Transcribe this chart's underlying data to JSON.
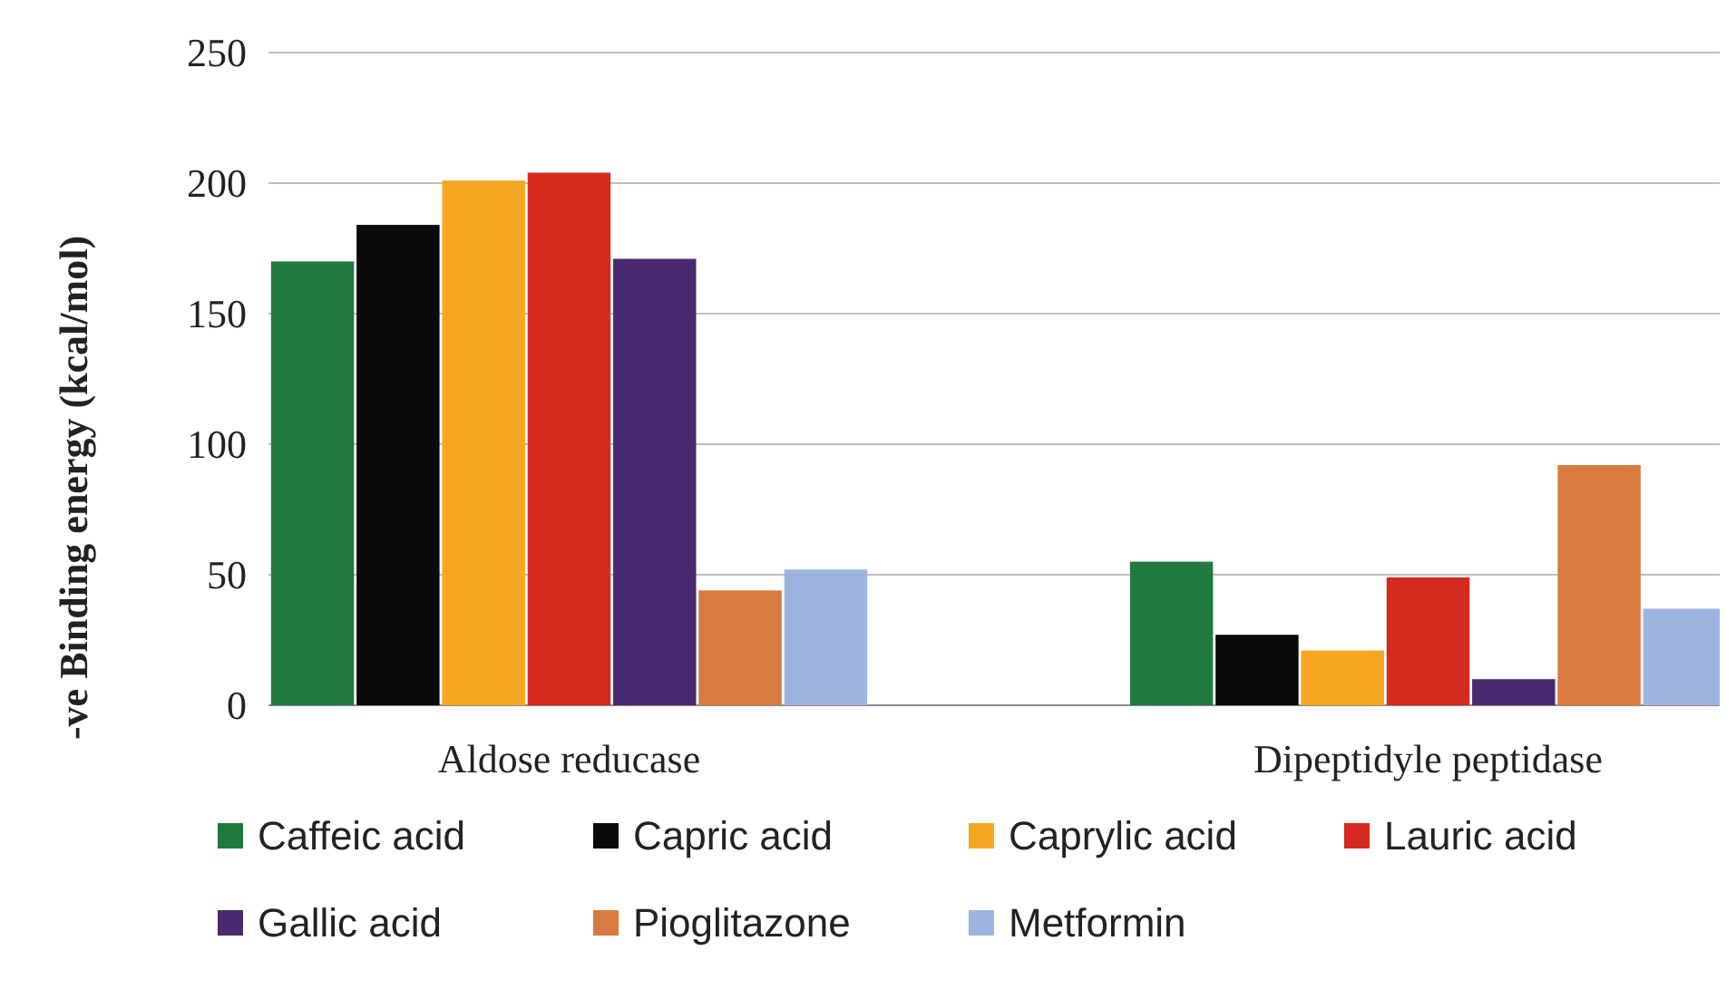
{
  "chart_data": {
    "type": "bar",
    "ylabel": "-ve Binding energy (kcal/mol)",
    "categories": [
      "Aldose reducase",
      "Dipeptidyle peptidase"
    ],
    "series": [
      {
        "name": "Caffeic acid",
        "color": "#1e7a3e",
        "values": [
          170,
          55
        ]
      },
      {
        "name": "Capric acid",
        "color": "#0a0a0a",
        "values": [
          184,
          27
        ]
      },
      {
        "name": "Caprylic acid",
        "color": "#f5a623",
        "values": [
          201,
          21
        ]
      },
      {
        "name": "Lauric acid",
        "color": "#d42a1f",
        "values": [
          204,
          49
        ]
      },
      {
        "name": "Gallic acid",
        "color": "#4a2a6e",
        "values": [
          171,
          10
        ]
      },
      {
        "name": "Pioglitazone",
        "color": "#d97b3f",
        "values": [
          44,
          92
        ]
      },
      {
        "name": "Metformin",
        "color": "#9eb4e0",
        "values": [
          52,
          37
        ]
      }
    ],
    "ylim": [
      0,
      250
    ],
    "yticks": [
      0,
      50,
      100,
      150,
      200,
      250
    ],
    "grid": "y",
    "legend": "bottom"
  }
}
